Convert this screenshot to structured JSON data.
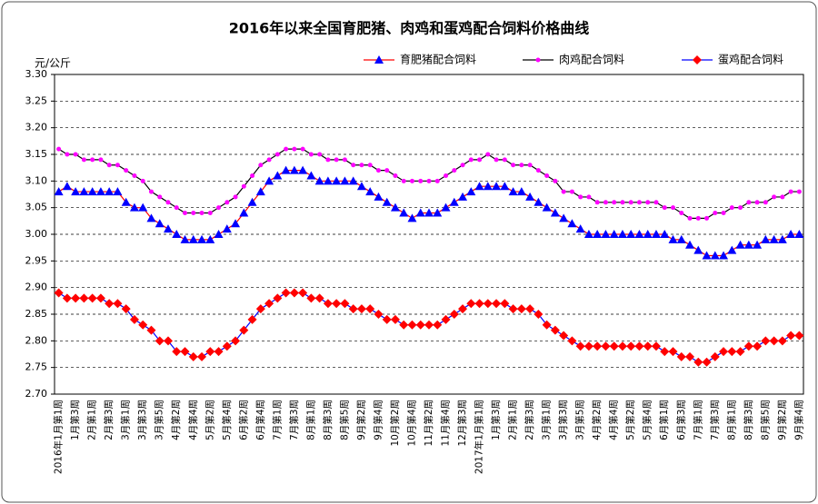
{
  "chart_data": {
    "type": "line",
    "title": "2016年以来全国育肥猪、肉鸡和蛋鸡配合饲料价格曲线",
    "y_label": "元/公斤",
    "categories": [
      "2016年1月第1周",
      null,
      "1月第3周",
      null,
      "2月第1周",
      null,
      "2月第3周",
      null,
      "3月第1周",
      null,
      "3月第3周",
      null,
      "3月第5周",
      null,
      "4月第2周",
      null,
      "4月第4周",
      null,
      "5月第2周",
      null,
      "5月第4周",
      null,
      "6月第2周",
      null,
      "6月第4周",
      null,
      "7月第1周",
      null,
      "7月第3周",
      null,
      "8月第1周",
      null,
      "8月第3周",
      null,
      "8月第5周",
      null,
      "9月第2周",
      null,
      "9月第4周",
      null,
      "10月第2周",
      null,
      "10月第4周",
      null,
      "11月第2周",
      null,
      "11月第4周",
      null,
      "12月第3周",
      null,
      "2017年1月第1周",
      null,
      "1月第3周",
      null,
      "2月第1周",
      null,
      "2月第3周",
      null,
      "3月第1周",
      null,
      "3月第3周",
      null,
      "3月第5周",
      null,
      "4月第2周",
      null,
      "4月第4周",
      null,
      "5月第2周",
      null,
      "5月第4周",
      null,
      "6月第1周",
      null,
      "6月第3周",
      null,
      "7月第1周",
      null,
      "7月第3周",
      null,
      "8月第1周",
      null,
      "8月第3周",
      null,
      "8月第5周",
      null,
      "9月第2周",
      null,
      "9月第4周"
    ],
    "series": [
      {
        "name": "育肥猪配合饲料",
        "color": "#0000ff",
        "line_color": "#ff0000",
        "marker": "triangle",
        "values": [
          3.08,
          3.09,
          3.08,
          3.08,
          3.08,
          3.08,
          3.08,
          3.08,
          3.06,
          3.05,
          3.05,
          3.03,
          3.02,
          3.01,
          3.0,
          2.99,
          2.99,
          2.99,
          2.99,
          3.0,
          3.01,
          3.02,
          3.04,
          3.06,
          3.08,
          3.1,
          3.11,
          3.12,
          3.12,
          3.12,
          3.11,
          3.1,
          3.1,
          3.1,
          3.1,
          3.1,
          3.09,
          3.08,
          3.07,
          3.06,
          3.05,
          3.04,
          3.03,
          3.04,
          3.04,
          3.04,
          3.05,
          3.06,
          3.07,
          3.08,
          3.09,
          3.09,
          3.09,
          3.09,
          3.08,
          3.08,
          3.07,
          3.06,
          3.05,
          3.04,
          3.03,
          3.02,
          3.01,
          3.0,
          3.0,
          3.0,
          3.0,
          3.0,
          3.0,
          3.0,
          3.0,
          3.0,
          3.0,
          2.99,
          2.99,
          2.98,
          2.97,
          2.96,
          2.96,
          2.96,
          2.97,
          2.98,
          2.98,
          2.98,
          2.99,
          2.99,
          2.99,
          3.0,
          3.0
        ]
      },
      {
        "name": "肉鸡配合饲料",
        "color": "#ff00ff",
        "line_color": "#000000",
        "marker": "circle",
        "values": [
          3.16,
          3.15,
          3.15,
          3.14,
          3.14,
          3.14,
          3.13,
          3.13,
          3.12,
          3.11,
          3.1,
          3.08,
          3.07,
          3.06,
          3.05,
          3.04,
          3.04,
          3.04,
          3.04,
          3.05,
          3.06,
          3.07,
          3.09,
          3.11,
          3.13,
          3.14,
          3.15,
          3.16,
          3.16,
          3.16,
          3.15,
          3.15,
          3.14,
          3.14,
          3.14,
          3.13,
          3.13,
          3.13,
          3.12,
          3.12,
          3.11,
          3.1,
          3.1,
          3.1,
          3.1,
          3.1,
          3.11,
          3.12,
          3.13,
          3.14,
          3.14,
          3.15,
          3.14,
          3.14,
          3.13,
          3.13,
          3.13,
          3.12,
          3.11,
          3.1,
          3.08,
          3.08,
          3.07,
          3.07,
          3.06,
          3.06,
          3.06,
          3.06,
          3.06,
          3.06,
          3.06,
          3.06,
          3.05,
          3.05,
          3.04,
          3.03,
          3.03,
          3.03,
          3.04,
          3.04,
          3.05,
          3.05,
          3.06,
          3.06,
          3.06,
          3.07,
          3.07,
          3.08,
          3.08
        ]
      },
      {
        "name": "蛋鸡配合饲料",
        "color": "#ff0000",
        "line_color": "#0000ff",
        "marker": "diamond",
        "values": [
          2.89,
          2.88,
          2.88,
          2.88,
          2.88,
          2.88,
          2.87,
          2.87,
          2.86,
          2.84,
          2.83,
          2.82,
          2.8,
          2.8,
          2.78,
          2.78,
          2.77,
          2.77,
          2.78,
          2.78,
          2.79,
          2.8,
          2.82,
          2.84,
          2.86,
          2.87,
          2.88,
          2.89,
          2.89,
          2.89,
          2.88,
          2.88,
          2.87,
          2.87,
          2.87,
          2.86,
          2.86,
          2.86,
          2.85,
          2.84,
          2.84,
          2.83,
          2.83,
          2.83,
          2.83,
          2.83,
          2.84,
          2.85,
          2.86,
          2.87,
          2.87,
          2.87,
          2.87,
          2.87,
          2.86,
          2.86,
          2.86,
          2.85,
          2.83,
          2.82,
          2.81,
          2.8,
          2.79,
          2.79,
          2.79,
          2.79,
          2.79,
          2.79,
          2.79,
          2.79,
          2.79,
          2.79,
          2.78,
          2.78,
          2.77,
          2.77,
          2.76,
          2.76,
          2.77,
          2.78,
          2.78,
          2.78,
          2.79,
          2.79,
          2.8,
          2.8,
          2.8,
          2.81,
          2.81
        ]
      }
    ],
    "ylim": [
      2.7,
      3.3
    ],
    "yticks": [
      {
        "value": 2.7,
        "label": "2.70"
      },
      {
        "value": 2.75,
        "label": "2.75"
      },
      {
        "value": 2.8,
        "label": "2.80"
      },
      {
        "value": 2.85,
        "label": "2.85"
      },
      {
        "value": 2.9,
        "label": "2.90"
      },
      {
        "value": 2.95,
        "label": "2.95"
      },
      {
        "value": 3.0,
        "label": "3.00"
      },
      {
        "value": 3.05,
        "label": "3.05"
      },
      {
        "value": 3.1,
        "label": "3.10"
      },
      {
        "value": 3.15,
        "label": "3.15"
      },
      {
        "value": 3.2,
        "label": "3.20"
      },
      {
        "value": 3.25,
        "label": "3.25"
      },
      {
        "value": 3.3,
        "label": "3.30"
      }
    ],
    "grid": true,
    "legend": "top"
  }
}
